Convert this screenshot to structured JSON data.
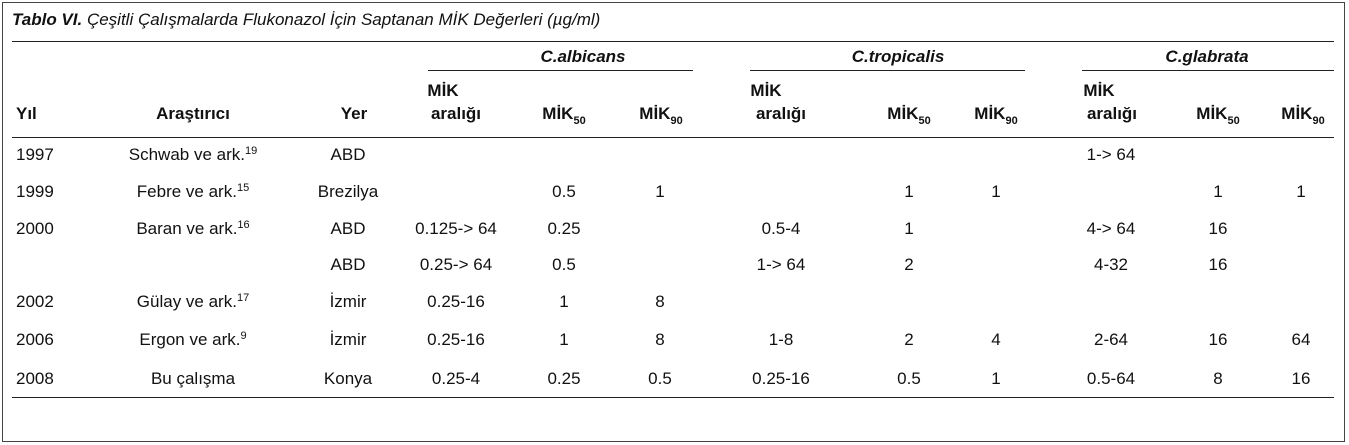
{
  "caption": {
    "label": "Tablo VI.",
    "title": "Çeşitli Çalışmalarda Flukonazol İçin Saptanan MİK Değerleri (µg/ml)"
  },
  "groups": [
    "C.albicans",
    "C.tropicalis",
    "C.glabrata"
  ],
  "headers": {
    "year": "Yıl",
    "researcher": "Araştırıcı",
    "place": "Yer",
    "mic_range_line1": "MİK",
    "mic_range_line2": "aralığı",
    "mic": "MİK",
    "sub50": "50",
    "sub90": "90"
  },
  "rows": [
    {
      "year": "1997",
      "author": "Schwab ve ark.",
      "ref": "19",
      "place": "ABD",
      "alb_range": "",
      "alb50": "",
      "alb90": "",
      "tro_range": "",
      "tro50": "",
      "tro90": "",
      "gla_range": "1-> 64",
      "gla50": "",
      "gla90": ""
    },
    {
      "year": "1999",
      "author": "Febre ve ark.",
      "ref": "15",
      "place": "Brezilya",
      "alb_range": "",
      "alb50": "0.5",
      "alb90": "1",
      "tro_range": "",
      "tro50": "1",
      "tro90": "1",
      "gla_range": "",
      "gla50": "1",
      "gla90": "1"
    },
    {
      "year": "2000",
      "author": "Baran ve ark.",
      "ref": "16",
      "place": "ABD",
      "alb_range": "0.125-> 64",
      "alb50": "0.25",
      "alb90": "",
      "tro_range": "0.5-4",
      "tro50": "1",
      "tro90": "",
      "gla_range": "4-> 64",
      "gla50": "16",
      "gla90": ""
    },
    {
      "year": "",
      "author": "",
      "ref": "",
      "place": "ABD",
      "alb_range": "0.25-> 64",
      "alb50": "0.5",
      "alb90": "",
      "tro_range": "1-> 64",
      "tro50": "2",
      "tro90": "",
      "gla_range": "4-32",
      "gla50": "16",
      "gla90": ""
    },
    {
      "year": "2002",
      "author": "Gülay ve ark.",
      "ref": "17",
      "place": "İzmir",
      "alb_range": "0.25-16",
      "alb50": "1",
      "alb90": "8",
      "tro_range": "",
      "tro50": "",
      "tro90": "",
      "gla_range": "",
      "gla50": "",
      "gla90": ""
    },
    {
      "year": "2006",
      "author": "Ergon ve ark.",
      "ref": "9",
      "place": "İzmir",
      "alb_range": "0.25-16",
      "alb50": "1",
      "alb90": "8",
      "tro_range": "1-8",
      "tro50": "2",
      "tro90": "4",
      "gla_range": "2-64",
      "gla50": "16",
      "gla90": "64"
    },
    {
      "year": "2008",
      "author": "Bu çalışma",
      "ref": "",
      "place": "Konya",
      "alb_range": "0.25-4",
      "alb50": "0.25",
      "alb90": "0.5",
      "tro_range": "0.25-16",
      "tro50": "0.5",
      "tro90": "1",
      "gla_range": "0.5-64",
      "gla50": "8",
      "gla90": "16"
    }
  ]
}
